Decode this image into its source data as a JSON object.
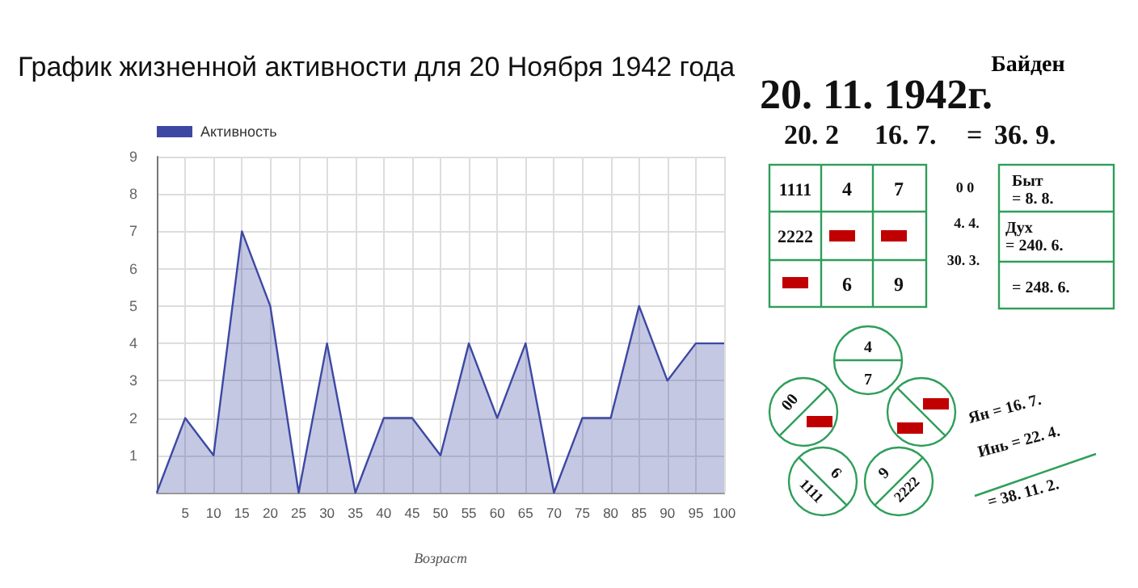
{
  "chart_data": [
    {
      "type": "area",
      "title": "График жизненной активности для 20 Ноября 1942 года",
      "xlabel": "Возраст",
      "x": [
        0,
        5,
        10,
        15,
        20,
        25,
        30,
        35,
        40,
        45,
        50,
        55,
        60,
        65,
        70,
        75,
        80,
        85,
        90,
        95,
        100
      ],
      "series": [
        {
          "name": "Активность",
          "color": "#3d48a3",
          "values": [
            0,
            2,
            1,
            7,
            5,
            0,
            4,
            0,
            2,
            2,
            1,
            4,
            2,
            4,
            0,
            2,
            2,
            5,
            3,
            4,
            4
          ]
        }
      ],
      "xlim": [
        0,
        100
      ],
      "xticks": [
        5,
        10,
        15,
        20,
        25,
        30,
        35,
        40,
        45,
        50,
        55,
        60,
        65,
        70,
        75,
        80,
        85,
        90,
        95,
        100
      ],
      "ylim": [
        0,
        9
      ],
      "yticks": [
        1,
        2,
        3,
        4,
        5,
        6,
        7,
        8,
        9
      ],
      "grid": true,
      "legend": "top left",
      "marker": "none"
    },
    {
      "type": "other",
      "title": "Байден",
      "annotations": [
        "20. 11. 1942г.",
        "20. 2",
        "16. 7.",
        "=",
        "36. 9.",
        "1111",
        "4",
        "7",
        "2222",
        "6",
        "9",
        "0 0",
        "4. 4.",
        "30. 3.",
        "Быт",
        "= 8. 8.",
        "Дух",
        "= 240. 6.",
        "= 248. 6.",
        "4",
        "7",
        "00",
        "6",
        "1111",
        "9",
        "2222",
        "Ян = 16. 7.",
        "Инь = 22. 4.",
        "= 38. 11. 2."
      ]
    }
  ]
}
